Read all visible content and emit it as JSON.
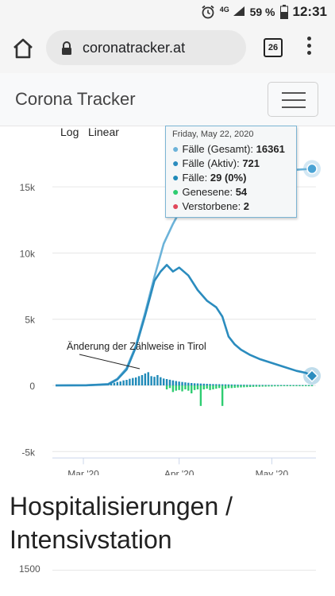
{
  "statusbar": {
    "network": "4G",
    "battery": "59 %",
    "time": "12:31",
    "icons": [
      "alarm-icon",
      "signal-icon",
      "battery-icon"
    ]
  },
  "browser": {
    "url": "coronatracker.at",
    "tab_count": "26",
    "icons": [
      "home-icon",
      "lock-icon",
      "overflow-menu-icon"
    ]
  },
  "header": {
    "brand": "Corona Tracker",
    "menu_icon": "hamburger-icon"
  },
  "chart": {
    "scale_options": [
      "Log",
      "Linear"
    ],
    "annotation": "Änderung der Zählweise in Tirol",
    "tooltip": {
      "date": "Friday, May 22, 2020",
      "rows": [
        {
          "label": "Fälle (Gesamt): ",
          "value": "16361",
          "color": "#6cb3d9"
        },
        {
          "label": "Fälle (Aktiv): ",
          "value": "721",
          "color": "#2b8cbe"
        },
        {
          "label": "Fälle: ",
          "value": "29 (0%)",
          "color": "#1f8ab8"
        },
        {
          "label": "Genesene: ",
          "value": "54",
          "color": "#2ecc71"
        },
        {
          "label": "Verstorbene: ",
          "value": "2",
          "color": "#e0475a"
        }
      ]
    }
  },
  "chart_data": {
    "type": "line",
    "xlabel": "",
    "ylabel": "",
    "ylim": [
      -5000,
      18000
    ],
    "y_ticks": [
      "15k",
      "10k",
      "5k",
      "0",
      "-5k"
    ],
    "x_ticks": [
      "Mar '20",
      "Apr '20",
      "May '20"
    ],
    "grid": true,
    "series": [
      {
        "key": "total",
        "color": "#6cb3d9",
        "points": [
          [
            0,
            0
          ],
          [
            10,
            10
          ],
          [
            17,
            100
          ],
          [
            20,
            500
          ],
          [
            23,
            1300
          ],
          [
            26,
            3000
          ],
          [
            29,
            5500
          ],
          [
            32,
            8200
          ],
          [
            35,
            10700
          ],
          [
            38,
            12200
          ],
          [
            41,
            13500
          ],
          [
            44,
            14200
          ],
          [
            50,
            15000
          ],
          [
            56,
            15600
          ],
          [
            62,
            15900
          ],
          [
            68,
            16100
          ],
          [
            75,
            16250
          ],
          [
            83,
            16361
          ]
        ]
      },
      {
        "key": "active",
        "color": "#2b8cbe",
        "points": [
          [
            0,
            0
          ],
          [
            10,
            10
          ],
          [
            17,
            80
          ],
          [
            20,
            450
          ],
          [
            23,
            1200
          ],
          [
            26,
            2900
          ],
          [
            29,
            5300
          ],
          [
            32,
            7900
          ],
          [
            34,
            8600
          ],
          [
            36,
            9100
          ],
          [
            38,
            8600
          ],
          [
            40,
            8900
          ],
          [
            43,
            8300
          ],
          [
            46,
            7200
          ],
          [
            49,
            6400
          ],
          [
            52,
            5900
          ],
          [
            54,
            5200
          ],
          [
            56,
            3700
          ],
          [
            58,
            3100
          ],
          [
            60,
            2700
          ],
          [
            63,
            2300
          ],
          [
            66,
            2000
          ],
          [
            70,
            1700
          ],
          [
            74,
            1400
          ],
          [
            78,
            1100
          ],
          [
            81,
            950
          ],
          [
            83,
            721
          ]
        ]
      },
      {
        "key": "new_cases",
        "type": "bar",
        "color": "#1f8ab8",
        "points": [
          [
            14,
            40
          ],
          [
            15,
            60
          ],
          [
            16,
            80
          ],
          [
            17,
            110
          ],
          [
            18,
            150
          ],
          [
            19,
            200
          ],
          [
            20,
            260
          ],
          [
            21,
            300
          ],
          [
            22,
            380
          ],
          [
            23,
            420
          ],
          [
            24,
            500
          ],
          [
            25,
            560
          ],
          [
            26,
            600
          ],
          [
            27,
            700
          ],
          [
            28,
            780
          ],
          [
            29,
            900
          ],
          [
            30,
            1000
          ],
          [
            31,
            700
          ],
          [
            32,
            650
          ],
          [
            33,
            780
          ],
          [
            34,
            620
          ],
          [
            35,
            520
          ],
          [
            36,
            480
          ],
          [
            37,
            430
          ],
          [
            38,
            380
          ],
          [
            39,
            330
          ],
          [
            40,
            290
          ],
          [
            41,
            260
          ],
          [
            42,
            230
          ],
          [
            43,
            200
          ],
          [
            44,
            180
          ],
          [
            45,
            160
          ],
          [
            46,
            150
          ],
          [
            47,
            140
          ],
          [
            48,
            130
          ],
          [
            49,
            120
          ],
          [
            50,
            110
          ],
          [
            51,
            100
          ],
          [
            52,
            95
          ],
          [
            53,
            90
          ],
          [
            54,
            85
          ],
          [
            55,
            80
          ],
          [
            56,
            75
          ],
          [
            57,
            70
          ],
          [
            58,
            65
          ],
          [
            59,
            60
          ],
          [
            60,
            55
          ],
          [
            61,
            55
          ],
          [
            62,
            50
          ],
          [
            63,
            48
          ],
          [
            64,
            46
          ],
          [
            65,
            44
          ],
          [
            66,
            42
          ],
          [
            67,
            40
          ],
          [
            68,
            38
          ],
          [
            69,
            36
          ],
          [
            70,
            34
          ],
          [
            71,
            33
          ],
          [
            72,
            32
          ],
          [
            73,
            31
          ],
          [
            74,
            30
          ],
          [
            75,
            30
          ],
          [
            76,
            29
          ],
          [
            77,
            29
          ],
          [
            78,
            29
          ],
          [
            79,
            29
          ],
          [
            80,
            29
          ],
          [
            81,
            29
          ],
          [
            82,
            29
          ],
          [
            83,
            29
          ]
        ]
      },
      {
        "key": "recovered",
        "type": "bar",
        "color": "#2ecc71",
        "points": [
          [
            36,
            -300
          ],
          [
            37,
            -200
          ],
          [
            38,
            -500
          ],
          [
            39,
            -400
          ],
          [
            40,
            -350
          ],
          [
            41,
            -450
          ],
          [
            42,
            -300
          ],
          [
            43,
            -400
          ],
          [
            44,
            -600
          ],
          [
            45,
            -350
          ],
          [
            46,
            -300
          ],
          [
            47,
            -1550
          ],
          [
            48,
            -300
          ],
          [
            49,
            -250
          ],
          [
            50,
            -350
          ],
          [
            51,
            -300
          ],
          [
            52,
            -250
          ],
          [
            53,
            -200
          ],
          [
            54,
            -1550
          ],
          [
            55,
            -250
          ],
          [
            56,
            -200
          ],
          [
            57,
            -200
          ],
          [
            58,
            -180
          ],
          [
            59,
            -160
          ],
          [
            60,
            -150
          ],
          [
            61,
            -140
          ],
          [
            62,
            -130
          ],
          [
            63,
            -120
          ],
          [
            64,
            -110
          ],
          [
            65,
            -100
          ],
          [
            66,
            -100
          ],
          [
            67,
            -90
          ],
          [
            68,
            -90
          ],
          [
            69,
            -80
          ],
          [
            70,
            -80
          ],
          [
            71,
            -70
          ],
          [
            72,
            -70
          ],
          [
            73,
            -60
          ],
          [
            74,
            -60
          ],
          [
            75,
            -60
          ],
          [
            76,
            -60
          ],
          [
            77,
            -55
          ],
          [
            78,
            -55
          ],
          [
            79,
            -55
          ],
          [
            80,
            -54
          ],
          [
            81,
            -54
          ],
          [
            82,
            -54
          ],
          [
            83,
            -54
          ]
        ]
      }
    ]
  },
  "sections": {
    "hospital_title": "Hospitalisierungen / Intensivstation",
    "hospital_first_tick": "1500"
  }
}
